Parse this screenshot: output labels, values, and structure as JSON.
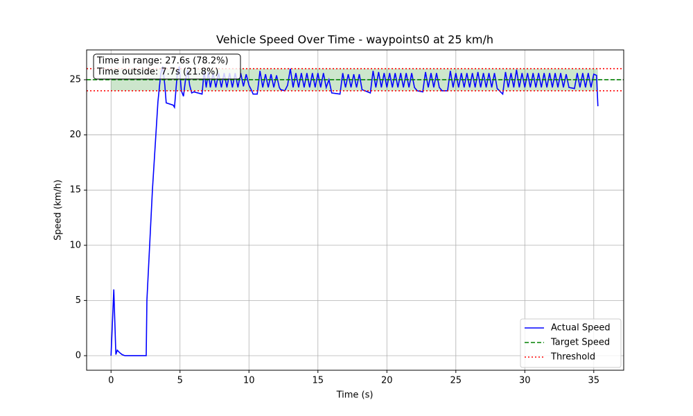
{
  "chart_data": {
    "type": "line",
    "title": "Vehicle Speed Over Time - waypoints0 at 25 km/h",
    "x_label": "Time (s)",
    "y_label": "Speed (km/h)",
    "x": [
      0,
      0.2,
      0.35,
      0.45,
      0.6,
      0.8,
      1.0,
      2.0,
      2.55,
      2.6,
      3.0,
      3.4,
      3.6,
      3.75,
      3.9,
      4.0,
      4.5,
      4.6,
      4.8,
      4.95,
      5.1,
      5.25,
      5.4,
      5.55,
      5.7,
      5.85,
      6.0,
      6.6,
      6.75,
      6.9,
      7.05,
      7.2,
      7.4,
      7.6,
      7.8,
      8.0,
      8.2,
      8.4,
      8.6,
      8.8,
      9.0,
      9.2,
      9.4,
      9.6,
      9.8,
      10.0,
      10.2,
      10.3,
      10.6,
      10.8,
      11.0,
      11.2,
      11.4,
      11.6,
      11.8,
      12.0,
      12.2,
      12.3,
      12.6,
      12.8,
      13.0,
      13.2,
      13.4,
      13.6,
      13.8,
      14.0,
      14.2,
      14.4,
      14.6,
      14.8,
      15.0,
      15.2,
      15.4,
      15.6,
      15.8,
      16.0,
      16.6,
      16.8,
      17.0,
      17.2,
      17.4,
      17.6,
      17.8,
      18.0,
      18.2,
      18.4,
      18.8,
      19.0,
      19.2,
      19.4,
      19.6,
      19.8,
      20.0,
      20.2,
      20.4,
      20.6,
      20.8,
      21.0,
      21.2,
      21.4,
      21.6,
      21.8,
      22.0,
      22.2,
      22.6,
      22.8,
      23.0,
      23.2,
      23.4,
      23.6,
      23.8,
      24.0,
      24.2,
      24.4,
      24.6,
      24.8,
      25.0,
      25.2,
      25.4,
      25.6,
      25.8,
      26.0,
      26.2,
      26.4,
      26.6,
      26.8,
      27.0,
      27.2,
      27.4,
      27.6,
      27.8,
      28.0,
      28.4,
      28.6,
      28.8,
      29.0,
      29.2,
      29.4,
      29.6,
      29.8,
      30.0,
      30.2,
      30.4,
      30.6,
      30.8,
      31.0,
      31.2,
      31.4,
      31.6,
      31.8,
      32.0,
      32.2,
      32.4,
      32.6,
      32.8,
      33.0,
      33.2,
      33.6,
      33.8,
      34.0,
      34.2,
      34.4,
      34.6,
      34.8,
      35.0,
      35.2,
      35.3
    ],
    "series": [
      {
        "name": "Actual Speed",
        "color": "#0000ff",
        "values": [
          0,
          6.0,
          0.1,
          0.5,
          0.3,
          0.1,
          0,
          0,
          0,
          5,
          15,
          23,
          25.5,
          26.2,
          24.5,
          22.9,
          22.7,
          22.5,
          25.5,
          26.2,
          24.0,
          23.5,
          25.0,
          25.9,
          24.5,
          23.8,
          23.9,
          23.7,
          25.8,
          24.3,
          25.7,
          24.3,
          25.6,
          24.3,
          25.6,
          24.3,
          25.6,
          24.3,
          25.6,
          24.3,
          25.6,
          24.3,
          25.6,
          24.4,
          25.5,
          24.5,
          24.0,
          23.7,
          23.7,
          25.8,
          24.3,
          25.5,
          24.3,
          25.5,
          24.3,
          25.4,
          24.3,
          24.1,
          24.0,
          24.5,
          26.0,
          24.3,
          25.6,
          24.3,
          25.6,
          24.3,
          25.6,
          24.3,
          25.6,
          24.3,
          25.6,
          24.3,
          25.6,
          24.3,
          25.0,
          23.8,
          23.7,
          25.6,
          24.3,
          25.5,
          24.3,
          25.5,
          24.3,
          25.5,
          24.1,
          24.0,
          23.8,
          25.8,
          24.3,
          25.7,
          24.3,
          25.6,
          24.3,
          25.6,
          24.3,
          25.6,
          24.3,
          25.6,
          24.3,
          25.6,
          24.3,
          25.6,
          24.3,
          24.0,
          23.9,
          25.7,
          24.3,
          25.6,
          24.3,
          25.6,
          24.3,
          24.0,
          24.0,
          24.0,
          25.8,
          24.3,
          25.6,
          24.3,
          25.6,
          24.3,
          25.6,
          24.3,
          25.6,
          24.3,
          25.7,
          24.3,
          25.6,
          24.3,
          25.6,
          24.3,
          25.6,
          24.2,
          23.7,
          25.7,
          24.3,
          25.6,
          24.3,
          25.9,
          24.3,
          25.6,
          24.3,
          25.6,
          24.3,
          25.6,
          24.3,
          25.6,
          24.3,
          25.6,
          24.3,
          25.6,
          24.3,
          25.6,
          24.3,
          25.6,
          24.3,
          25.5,
          24.3,
          24.2,
          25.6,
          24.3,
          25.6,
          24.3,
          25.6,
          24.3,
          25.5,
          25.4,
          22.6
        ]
      }
    ],
    "target": {
      "name": "Target Speed",
      "value": 25,
      "color": "#008000"
    },
    "threshold": {
      "name": "Threshold",
      "values": [
        24,
        26
      ],
      "color": "#ff0000"
    },
    "annotation": [
      "Time in range: 27.6s (78.2%)",
      "Time outside: 7.7s (21.8%)"
    ],
    "xlim": [
      -1.77,
      37.17
    ],
    "ylim": [
      -1.32,
      27.7
    ],
    "xticks": [
      0,
      5,
      10,
      15,
      20,
      25,
      30,
      35
    ],
    "yticks": [
      0,
      5,
      10,
      15,
      20,
      25
    ],
    "grid": true,
    "legend": "lower right"
  }
}
